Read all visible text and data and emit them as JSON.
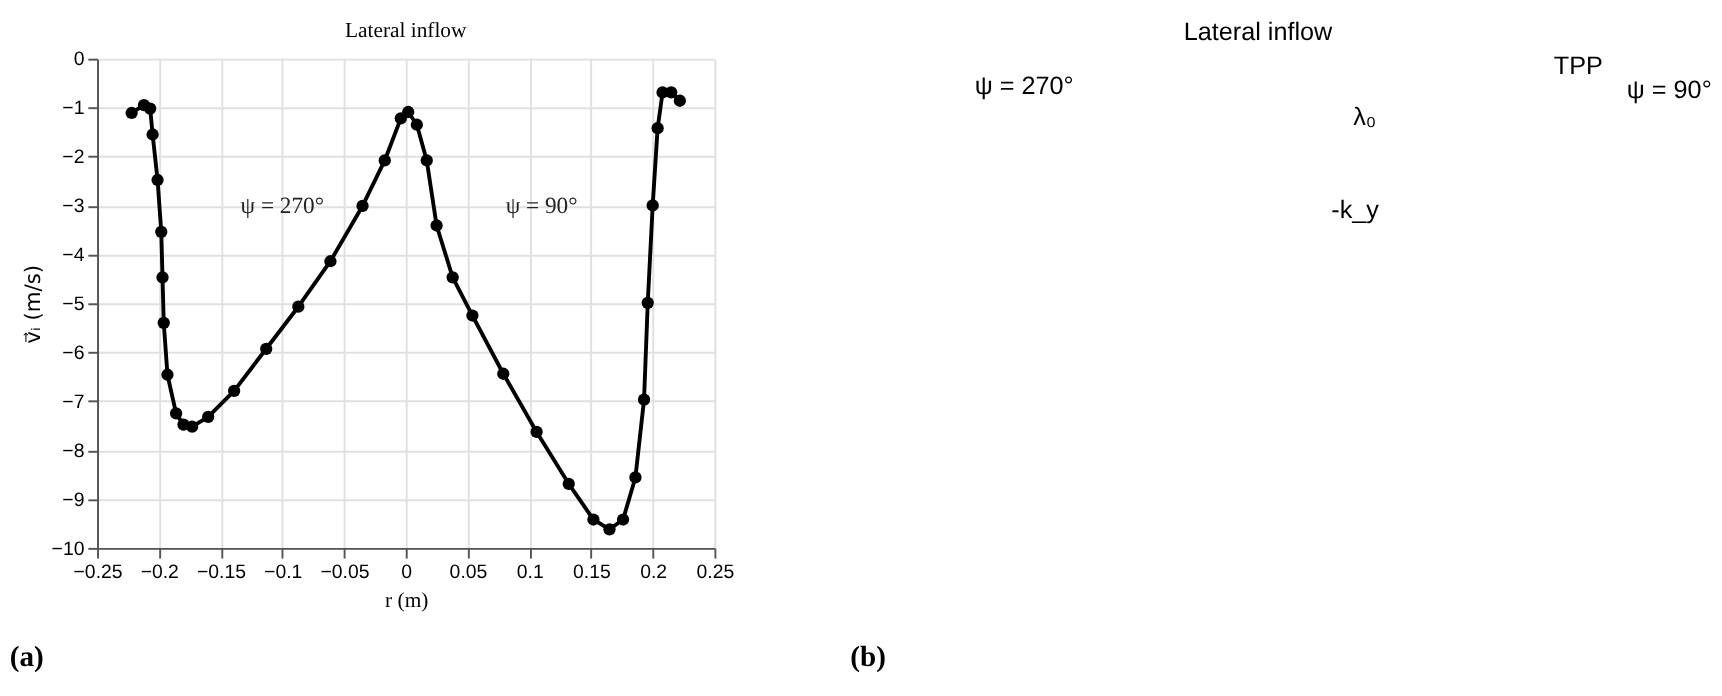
{
  "chart_data": [
    {
      "type": "line",
      "title": "Lateral inflow",
      "xlabel": "r (m)",
      "ylabel": "v⃗ᵢ (m/s)",
      "x": [
        -0.222,
        -0.212,
        -0.207,
        -0.205,
        -0.201,
        -0.198,
        -0.197,
        -0.196,
        -0.193,
        -0.186,
        -0.18,
        -0.173,
        -0.16,
        -0.139,
        -0.113,
        -0.087,
        -0.061,
        -0.035,
        -0.017,
        -0.004,
        0.002,
        0.009,
        0.017,
        0.025,
        0.038,
        0.054,
        0.079,
        0.106,
        0.132,
        0.152,
        0.165,
        0.176,
        0.186,
        0.193,
        0.196,
        0.2,
        0.204,
        0.208,
        0.215,
        0.222
      ],
      "series": [
        {
          "color": "#000000",
          "values": [
            -1.11,
            -0.95,
            -1.02,
            -1.55,
            -2.48,
            -3.54,
            -4.47,
            -5.4,
            -6.46,
            -7.25,
            -7.48,
            -7.52,
            -7.32,
            -6.79,
            -5.93,
            -5.07,
            -4.14,
            -3.01,
            -2.08,
            -1.22,
            -1.09,
            -1.35,
            -2.08,
            -3.41,
            -4.47,
            -5.25,
            -6.44,
            -7.63,
            -8.69,
            -9.42,
            -9.62,
            -9.42,
            -8.56,
            -6.97,
            -4.99,
            -3.0,
            -1.42,
            -0.69,
            -0.69,
            -0.86
          ]
        }
      ],
      "xlim": [
        -0.25,
        0.25
      ],
      "xticks": [
        -0.25,
        -0.2,
        -0.15,
        -0.1,
        -0.05,
        0,
        0.05,
        0.1,
        0.15,
        0.2,
        0.25
      ],
      "ylim": [
        -10,
        0
      ],
      "yticks": [
        -10,
        -9,
        -8,
        -7,
        -6,
        -5,
        -4,
        -3,
        -2,
        -1,
        0
      ],
      "grid": true,
      "marker": "circle",
      "line_style": "solid",
      "annotations": [
        "ψ = 270°",
        "ψ = 90°",
        "(a)"
      ]
    },
    {
      "type": "other",
      "title": "Lateral inflow",
      "annotations": [
        "ψ = 270°",
        "TPP",
        "ψ = 90°",
        "λ₀",
        "-k_y",
        "(b)"
      ]
    }
  ]
}
